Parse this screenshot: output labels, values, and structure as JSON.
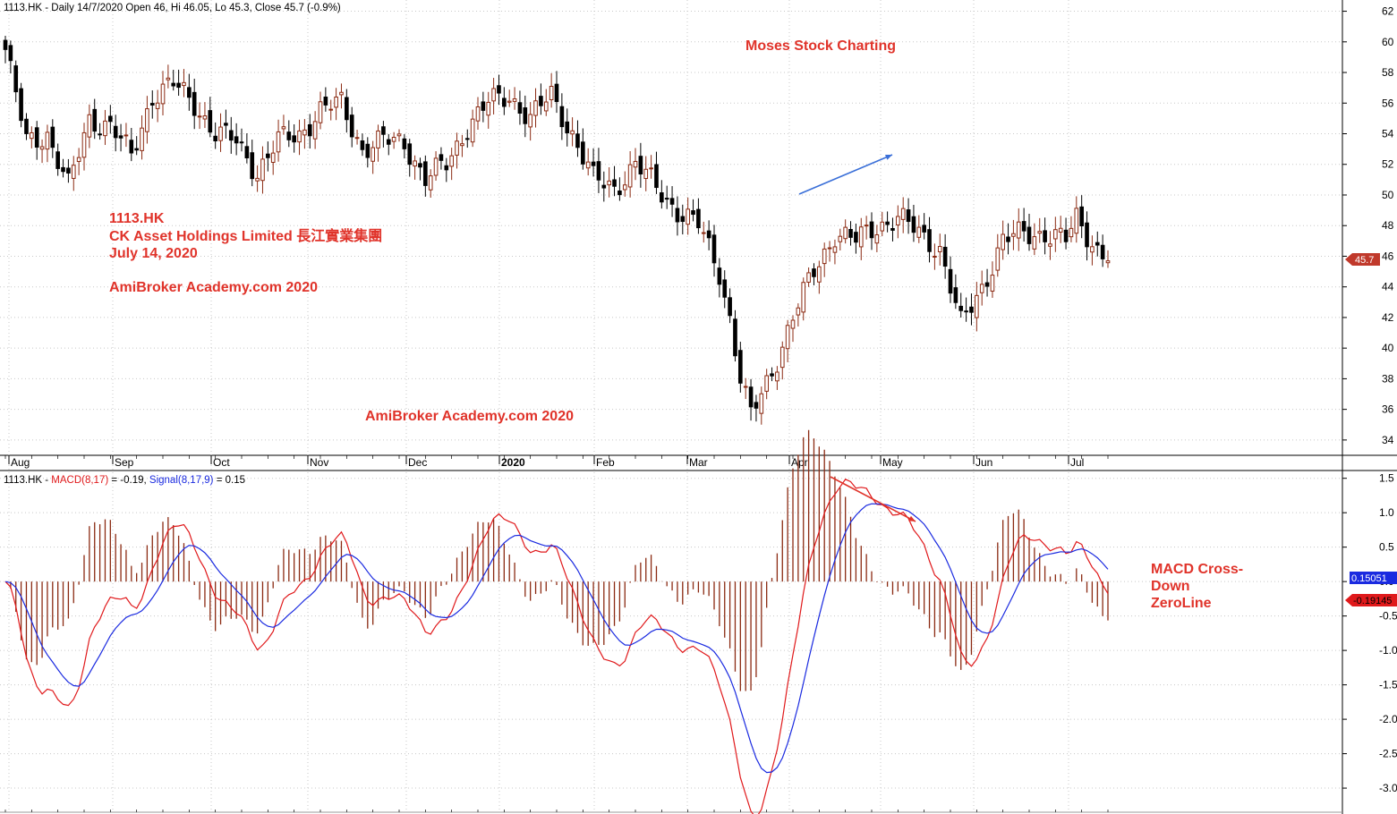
{
  "price_header": "1113.HK - Daily 14/7/2020 Open 46, Hi 46.05, Lo 45.3, Close 45.7 (-0.9%)",
  "macd_header": {
    "ticker": "1113.HK - ",
    "macd_text": "MACD(8,17)",
    "macd_value": " = -0.19, ",
    "signal_text": "Signal(8,17,9)",
    "signal_value": " = 0.15"
  },
  "annotations": {
    "moses": "Moses Stock Charting",
    "symbol": "1113.HK",
    "company": "CK Asset Holdings Limited  長江實業集團",
    "date": "July 14, 2020",
    "academy_top": "AmiBroker Academy.com  2020",
    "academy_bottom": "AmiBroker Academy.com  2020",
    "macd_cross_1": "MACD Cross-",
    "macd_cross_2": "Down",
    "macd_cross_3": "ZeroLine"
  },
  "colors": {
    "up_candle": "#8b2a12",
    "down_candle": "#000000",
    "macd": "#e0191b",
    "signal": "#1a2ae0",
    "histogram": "#8b2a12",
    "annotation": "#e0332a",
    "blue_arrow": "#3a6fd8",
    "red_arrow": "#e0332a"
  },
  "chart_data": [
    {
      "type": "candlestick",
      "title": "1113.HK - Daily 14/7/2020 Open 46, Hi 46.05, Lo 45.3, Close 45.7 (-0.9%)",
      "x_tick_labels": [
        "Aug",
        "Sep",
        "Oct",
        "Nov",
        "Dec",
        "2020",
        "Feb",
        "Mar",
        "Apr",
        "May",
        "Jun",
        "Jul"
      ],
      "y_ticks": [
        34,
        36,
        38,
        40,
        42,
        44,
        46,
        48,
        50,
        52,
        54,
        56,
        58,
        60,
        62
      ],
      "ylim": [
        33,
        62.5
      ],
      "last_price_label": "45.7",
      "close_anchors": [
        [
          0,
          59.5
        ],
        [
          4,
          53.5
        ],
        [
          8,
          54
        ],
        [
          12,
          50.5
        ],
        [
          16,
          55
        ],
        [
          20,
          54.5
        ],
        [
          24,
          52.5
        ],
        [
          28,
          56.5
        ],
        [
          32,
          57.2
        ],
        [
          36,
          56
        ],
        [
          40,
          54
        ],
        [
          44,
          53.5
        ],
        [
          48,
          51.5
        ],
        [
          52,
          53.5
        ],
        [
          56,
          54
        ],
        [
          60,
          55.5
        ],
        [
          64,
          56
        ],
        [
          68,
          53
        ],
        [
          72,
          53.5
        ],
        [
          76,
          53.5
        ],
        [
          80,
          51
        ],
        [
          84,
          52
        ],
        [
          88,
          54.5
        ],
        [
          92,
          56
        ],
        [
          96,
          56.5
        ],
        [
          100,
          55
        ],
        [
          104,
          56.5
        ],
        [
          108,
          54
        ],
        [
          112,
          51
        ],
        [
          116,
          50.5
        ],
        [
          120,
          52
        ],
        [
          124,
          50.5
        ],
        [
          128,
          49
        ],
        [
          132,
          48
        ],
        [
          136,
          45
        ],
        [
          138,
          42
        ],
        [
          140,
          38
        ],
        [
          142,
          35.5
        ],
        [
          146,
          38.5
        ],
        [
          150,
          42
        ],
        [
          154,
          45
        ],
        [
          158,
          47.5
        ],
        [
          162,
          47
        ],
        [
          166,
          48
        ],
        [
          170,
          48.5
        ],
        [
          174,
          47.5
        ],
        [
          178,
          46.5
        ],
        [
          180,
          44
        ],
        [
          182,
          41.5
        ],
        [
          186,
          44
        ],
        [
          190,
          47
        ],
        [
          194,
          47.5
        ],
        [
          198,
          47.5
        ],
        [
          202,
          47
        ],
        [
          204,
          48.5
        ],
        [
          206,
          47.5
        ],
        [
          208,
          46.5
        ],
        [
          210,
          45.7
        ]
      ]
    },
    {
      "type": "line",
      "title": "1113.HK - MACD(8,17) = -0.19, Signal(8,17,9) = 0.15",
      "y_ticks": [
        -3.0,
        -2.5,
        -2.0,
        -1.5,
        -1.0,
        -0.5,
        0.0,
        0.5,
        1.0,
        1.5
      ],
      "ylim": [
        -3.35,
        1.6
      ],
      "series": [
        {
          "name": "MACD(8,17)",
          "value_label": "-0.19145"
        },
        {
          "name": "Signal(8,17,9)",
          "value_label": "0.15051"
        },
        {
          "name": "Histogram",
          "value_label": ""
        }
      ]
    }
  ]
}
